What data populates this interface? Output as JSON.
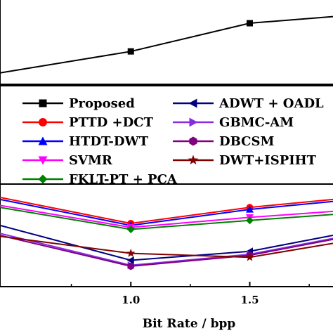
{
  "chart_data": {
    "type": "line",
    "xlabel": "Bit Rate / bpp",
    "x_ticks": [
      "1.0",
      "1.5"
    ],
    "xlim": [
      0.45,
      1.85
    ],
    "legend_position": "middle",
    "legend_columns": 2,
    "panels": [
      {
        "name": "top",
        "ylim": [
          0,
          1
        ],
        "series": [
          {
            "name": "Proposed",
            "color": "#000000",
            "marker": "square",
            "x": [
              0.45,
              1.0,
              1.5,
              1.85
            ],
            "y": [
              0.12,
              0.38,
              0.72,
              0.8
            ]
          }
        ]
      },
      {
        "name": "bottom",
        "ylim": [
          0,
          1
        ],
        "series": [
          {
            "name": "PTTD +DCT",
            "color": "#ff0000",
            "marker": "circle",
            "x": [
              0.45,
              1.0,
              1.5,
              1.85
            ],
            "y": [
              0.88,
              0.62,
              0.78,
              0.86
            ]
          },
          {
            "name": "HTDT-DWT",
            "color": "#0000ff",
            "marker": "triangle-up",
            "x": [
              0.45,
              1.0,
              1.5,
              1.85
            ],
            "y": [
              0.86,
              0.6,
              0.76,
              0.84
            ]
          },
          {
            "name": "SVMR",
            "color": "#ff00ff",
            "marker": "triangle-down",
            "x": [
              0.45,
              1.0,
              1.5,
              1.85
            ],
            "y": [
              0.8,
              0.58,
              0.68,
              0.74
            ]
          },
          {
            "name": "FKLT-PT + PCA",
            "color": "#008000",
            "marker": "diamond",
            "x": [
              0.45,
              1.0,
              1.5,
              1.85
            ],
            "y": [
              0.78,
              0.56,
              0.65,
              0.71
            ]
          },
          {
            "name": "ADWT + OADL",
            "color": "#000080",
            "marker": "triangle-left",
            "x": [
              0.45,
              1.0,
              1.5,
              1.85
            ],
            "y": [
              0.6,
              0.25,
              0.34,
              0.5
            ]
          },
          {
            "name": "GBMC-AM",
            "color": "#8a2be2",
            "marker": "triangle-right",
            "x": [
              0.45,
              1.0,
              1.5,
              1.85
            ],
            "y": [
              0.52,
              0.2,
              0.31,
              0.47
            ]
          },
          {
            "name": "DBCSM",
            "color": "#800080",
            "marker": "hexagon",
            "x": [
              0.45,
              1.0,
              1.5,
              1.85
            ],
            "y": [
              0.5,
              0.19,
              0.3,
              0.46
            ]
          },
          {
            "name": "DWT+ISPIHT",
            "color": "#800000",
            "marker": "star",
            "x": [
              0.45,
              1.0,
              1.5,
              1.85
            ],
            "y": [
              0.49,
              0.32,
              0.28,
              0.42
            ]
          }
        ]
      }
    ],
    "legend": [
      {
        "label": "Proposed",
        "color": "#000000",
        "marker": "square"
      },
      {
        "label": "ADWT + OADL",
        "color": "#000080",
        "marker": "triangle-left"
      },
      {
        "label": "PTTD +DCT",
        "color": "#ff0000",
        "marker": "circle"
      },
      {
        "label": "GBMC-AM",
        "color": "#8a2be2",
        "marker": "triangle-right"
      },
      {
        "label": "HTDT-DWT",
        "color": "#0000ff",
        "marker": "triangle-up"
      },
      {
        "label": "DBCSM",
        "color": "#800080",
        "marker": "hexagon"
      },
      {
        "label": "SVMR",
        "color": "#ff00ff",
        "marker": "triangle-down"
      },
      {
        "label": "DWT+ISPIHT",
        "color": "#800000",
        "marker": "star"
      },
      {
        "label": "FKLT-PT + PCA",
        "color": "#008000",
        "marker": "diamond"
      }
    ]
  }
}
